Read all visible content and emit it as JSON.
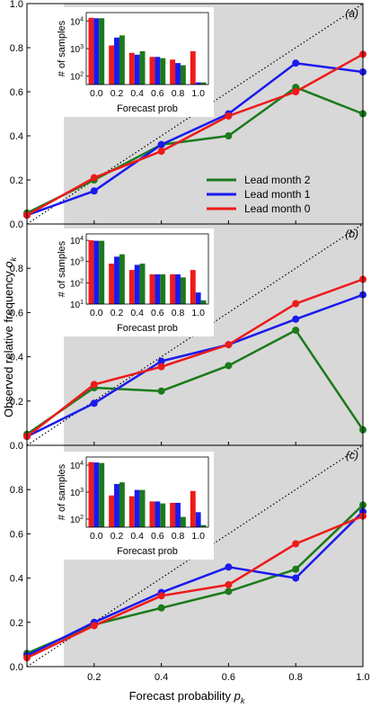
{
  "figure": {
    "xlabel_base": "Forecast probability ",
    "xlabel_sym": "p",
    "xlabel_sub": "k",
    "ylabel_base": "Observed relative frequency ",
    "ylabel_sym": "o",
    "ylabel_sub": "k"
  },
  "chart_data": [
    {
      "type": "line",
      "panel_label": "(a)",
      "xlim": [
        0.0,
        1.0
      ],
      "ylim": [
        0.0,
        1.0
      ],
      "xticks": [
        0.2,
        0.4,
        0.6,
        0.8,
        1.0
      ],
      "yticks": [
        0.0,
        0.2,
        0.4,
        0.6,
        0.8,
        1.0
      ],
      "climatology": 0.11,
      "perfect_reliability_line": "dotted",
      "x": [
        0.0,
        0.2,
        0.4,
        0.6,
        0.8,
        1.0
      ],
      "series": [
        {
          "name": "Lead month 2",
          "color": "#1b7a1b",
          "y": [
            0.05,
            0.2,
            0.36,
            0.4,
            0.62,
            0.5
          ]
        },
        {
          "name": "Lead month 1",
          "color": "#1a1aee",
          "y": [
            0.04,
            0.15,
            0.36,
            0.5,
            0.73,
            0.69
          ]
        },
        {
          "name": "Lead month 0",
          "color": "#ee1a1a",
          "y": [
            0.04,
            0.21,
            0.33,
            0.49,
            0.6,
            0.77
          ]
        }
      ],
      "legend": {
        "position": "right",
        "entries": [
          "Lead month 2",
          "Lead month 1",
          "Lead month 0"
        ]
      },
      "inset": {
        "type": "bar",
        "ylabel": "# of samples",
        "xlabel": "Forecast prob",
        "yscale": "log",
        "ylim": [
          50,
          20000
        ],
        "yticks": [
          {
            "base": "10",
            "exp": "2",
            "value": 100
          },
          {
            "base": "10",
            "exp": "3",
            "value": 1000
          },
          {
            "base": "10",
            "exp": "4",
            "value": 10000
          }
        ],
        "categories": [
          "0.0",
          "0.2",
          "0.4",
          "0.6",
          "0.8",
          "1.0"
        ],
        "series": [
          {
            "name": "Lead month 0",
            "color": "#ee1a1a",
            "values": [
              13000,
              1300,
              700,
              500,
              400,
              800
            ]
          },
          {
            "name": "Lead month 1",
            "color": "#1a1aee",
            "values": [
              12500,
              2500,
              600,
              500,
              300,
              60
            ]
          },
          {
            "name": "Lead month 2",
            "color": "#1b7a1b",
            "values": [
              12500,
              3000,
              800,
              450,
              250,
              60
            ]
          }
        ]
      }
    },
    {
      "type": "line",
      "panel_label": "(b)",
      "xlim": [
        0.0,
        1.0
      ],
      "ylim": [
        0.0,
        1.0
      ],
      "xticks": [
        0.2,
        0.4,
        0.6,
        0.8,
        1.0
      ],
      "yticks": [
        0.0,
        0.2,
        0.4,
        0.6,
        0.8,
        1.0
      ],
      "climatology": 0.11,
      "perfect_reliability_line": "dotted",
      "x": [
        0.0,
        0.2,
        0.4,
        0.6,
        0.8,
        1.0
      ],
      "series": [
        {
          "name": "Lead month 2",
          "color": "#1b7a1b",
          "y": [
            0.05,
            0.26,
            0.245,
            0.36,
            0.52,
            0.07
          ]
        },
        {
          "name": "Lead month 1",
          "color": "#1a1aee",
          "y": [
            0.04,
            0.19,
            0.38,
            0.455,
            0.57,
            0.68
          ]
        },
        {
          "name": "Lead month 0",
          "color": "#ee1a1a",
          "y": [
            0.04,
            0.275,
            0.355,
            0.455,
            0.64,
            0.75
          ]
        }
      ],
      "inset": {
        "type": "bar",
        "ylabel": "# of samples",
        "xlabel": "Forecast prob",
        "yscale": "log",
        "ylim": [
          10,
          20000
        ],
        "yticks": [
          {
            "base": "10",
            "exp": "1",
            "value": 10
          },
          {
            "base": "10",
            "exp": "2",
            "value": 100
          },
          {
            "base": "10",
            "exp": "3",
            "value": 1000
          },
          {
            "base": "10",
            "exp": "4",
            "value": 10000
          }
        ],
        "categories": [
          "0.0",
          "0.2",
          "0.4",
          "0.6",
          "0.8",
          "1.0"
        ],
        "series": [
          {
            "name": "Lead month 0",
            "color": "#ee1a1a",
            "values": [
              10000,
              800,
              400,
              250,
              250,
              400
            ]
          },
          {
            "name": "Lead month 1",
            "color": "#1a1aee",
            "values": [
              9500,
              1700,
              700,
              250,
              250,
              35
            ]
          },
          {
            "name": "Lead month 2",
            "color": "#1b7a1b",
            "values": [
              9500,
              2200,
              800,
              250,
              180,
              15
            ]
          }
        ]
      }
    },
    {
      "type": "line",
      "panel_label": "(c)",
      "xlim": [
        0.0,
        1.0
      ],
      "ylim": [
        0.0,
        1.0
      ],
      "xticks": [
        0.2,
        0.4,
        0.6,
        0.8,
        1.0
      ],
      "yticks": [
        0.0,
        0.2,
        0.4,
        0.6,
        0.8,
        1.0
      ],
      "climatology": 0.11,
      "perfect_reliability_line": "dotted",
      "x": [
        0.0,
        0.2,
        0.4,
        0.6,
        0.8,
        1.0
      ],
      "series": [
        {
          "name": "Lead month 2",
          "color": "#1b7a1b",
          "y": [
            0.06,
            0.19,
            0.265,
            0.34,
            0.44,
            0.73
          ]
        },
        {
          "name": "Lead month 1",
          "color": "#1a1aee",
          "y": [
            0.05,
            0.2,
            0.335,
            0.45,
            0.4,
            0.7
          ]
        },
        {
          "name": "Lead month 0",
          "color": "#ee1a1a",
          "y": [
            0.04,
            0.185,
            0.32,
            0.37,
            0.555,
            0.68
          ]
        }
      ],
      "inset": {
        "type": "bar",
        "ylabel": "# of samples",
        "xlabel": "Forecast prob",
        "yscale": "log",
        "ylim": [
          50,
          20000
        ],
        "yticks": [
          {
            "base": "10",
            "exp": "2",
            "value": 100
          },
          {
            "base": "10",
            "exp": "3",
            "value": 1000
          },
          {
            "base": "10",
            "exp": "4",
            "value": 10000
          }
        ],
        "categories": [
          "0.0",
          "0.2",
          "0.4",
          "0.6",
          "0.8",
          "1.0"
        ],
        "series": [
          {
            "name": "Lead month 0",
            "color": "#ee1a1a",
            "values": [
              13000,
              750,
              700,
              450,
              400,
              1100
            ]
          },
          {
            "name": "Lead month 1",
            "color": "#1a1aee",
            "values": [
              12500,
              2000,
              1200,
              450,
              400,
              180
            ]
          },
          {
            "name": "Lead month 2",
            "color": "#1b7a1b",
            "values": [
              12000,
              2300,
              1200,
              380,
              120,
              60
            ]
          }
        ]
      }
    }
  ]
}
